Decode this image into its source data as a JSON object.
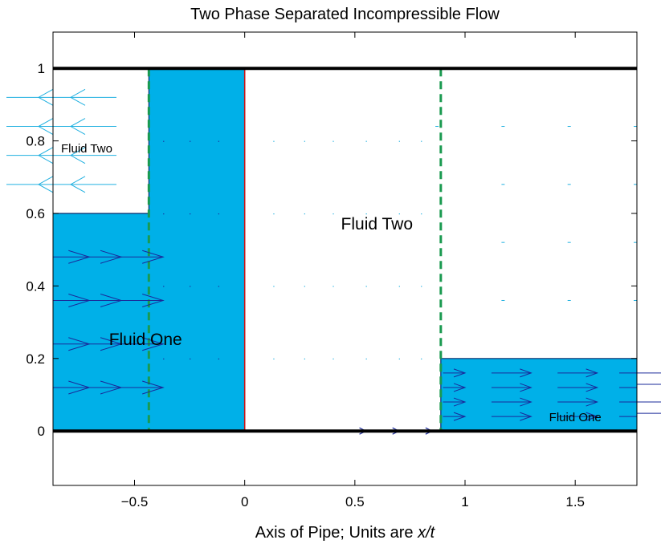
{
  "chart_data": {
    "type": "line",
    "title": "Two Phase Separated Incompressible Flow",
    "xlabel_prefix": "Axis of Pipe; Units are ",
    "xlabel_italic": "x/t",
    "ylabel": "",
    "xlim": [
      -0.87,
      1.78
    ],
    "ylim": [
      -0.15,
      1.1
    ],
    "xticks": [
      -0.5,
      0,
      0.5,
      1,
      1.5
    ],
    "xtick_labels": [
      "−0.5",
      "0",
      "0.5",
      "1",
      "1.5"
    ],
    "yticks": [
      0,
      0.2,
      0.4,
      0.6,
      0.8,
      1
    ],
    "ytick_labels": [
      "0",
      "0.2",
      "0.4",
      "0.6",
      "0.8",
      "1"
    ],
    "grid": false,
    "colors": {
      "fluid_one": "#00b0e8",
      "fluid_one_arrows": "#1a2a9a",
      "fluid_two_arrows": "#20b0e0",
      "dashed": "#1a9a50",
      "interface": "#d01010",
      "pipe_wall": "#000000"
    },
    "pipe_walls": [
      0,
      1
    ],
    "fluid_one_interface_x": [
      -0.87,
      -0.435,
      -0.435,
      0,
      0,
      0.89,
      0.89,
      1.78
    ],
    "fluid_one_interface_y": [
      0.6,
      0.6,
      1,
      1,
      0,
      0,
      0.2,
      0.2
    ],
    "contact_line_x": 0,
    "dashed_lines_x": [
      -0.435,
      0.89
    ],
    "labels": {
      "fluid_two_left": "Fluid Two",
      "fluid_two_middle": "Fluid Two",
      "fluid_one_left": "Fluid One",
      "fluid_one_right": "Fluid One"
    },
    "arrows_fluid_one_left": {
      "rows_y": [
        0.48,
        0.36,
        0.24,
        0.12
      ],
      "cols_x": [
        -0.87,
        -0.72,
        -0.58
      ]
    },
    "arrows_fluid_one_right": {
      "rows_y": [
        0.16,
        0.12,
        0.08,
        0.04
      ],
      "cols_x": [
        0.9,
        1.12,
        1.42,
        1.78
      ]
    },
    "arrows_fluid_two_left": {
      "rows_y": [
        0.92,
        0.84,
        0.76,
        0.68
      ],
      "cols_x": [
        -0.87,
        -0.72
      ]
    },
    "bottom_arrow": {
      "x_start": 0.4,
      "x_end": 0.85,
      "y": 0
    }
  }
}
